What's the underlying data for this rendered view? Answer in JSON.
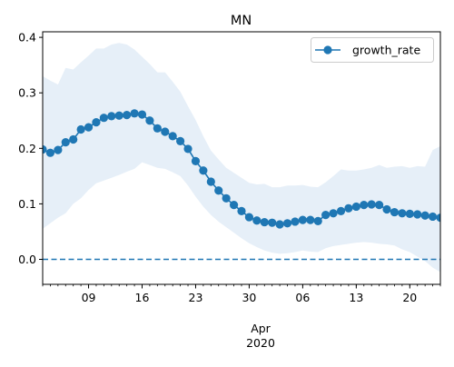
{
  "chart_data": {
    "type": "line",
    "title": "MN",
    "x_axis": {
      "type": "date",
      "start": "2020-03-03",
      "end": "2020-04-24",
      "ticks": [
        {
          "date": "2020-03-09",
          "label": "09"
        },
        {
          "date": "2020-03-16",
          "label": "16"
        },
        {
          "date": "2020-03-23",
          "label": "23"
        },
        {
          "date": "2020-03-30",
          "label": "30"
        },
        {
          "date": "2020-04-06",
          "label": "06"
        },
        {
          "date": "2020-04-13",
          "label": "13"
        },
        {
          "date": "2020-04-20",
          "label": "20"
        }
      ],
      "month_label": "Apr",
      "year_label": "2020"
    },
    "y_axis": {
      "ylim": [
        -0.045,
        0.41
      ],
      "ticks": [
        0.0,
        0.1,
        0.2,
        0.3,
        0.4
      ],
      "tick_labels": [
        "0.0",
        "0.1",
        "0.2",
        "0.3",
        "0.4"
      ]
    },
    "reference_line": {
      "y": 0.0,
      "style": "dashed",
      "color": "#1f77b4"
    },
    "legend": {
      "position": "top-right",
      "entries": [
        "growth_rate"
      ]
    },
    "series": [
      {
        "name": "growth_rate",
        "color": "#1f77b4",
        "band_color": "#e6eff8",
        "x": [
          "2020-03-03",
          "2020-03-04",
          "2020-03-05",
          "2020-03-06",
          "2020-03-07",
          "2020-03-08",
          "2020-03-09",
          "2020-03-10",
          "2020-03-11",
          "2020-03-12",
          "2020-03-13",
          "2020-03-14",
          "2020-03-15",
          "2020-03-16",
          "2020-03-17",
          "2020-03-18",
          "2020-03-19",
          "2020-03-20",
          "2020-03-21",
          "2020-03-22",
          "2020-03-23",
          "2020-03-24",
          "2020-03-25",
          "2020-03-26",
          "2020-03-27",
          "2020-03-28",
          "2020-03-29",
          "2020-03-30",
          "2020-03-31",
          "2020-04-01",
          "2020-04-02",
          "2020-04-03",
          "2020-04-04",
          "2020-04-05",
          "2020-04-06",
          "2020-04-07",
          "2020-04-08",
          "2020-04-09",
          "2020-04-10",
          "2020-04-11",
          "2020-04-12",
          "2020-04-13",
          "2020-04-14",
          "2020-04-15",
          "2020-04-16",
          "2020-04-17",
          "2020-04-18",
          "2020-04-19",
          "2020-04-20",
          "2020-04-21",
          "2020-04-22",
          "2020-04-23",
          "2020-04-24"
        ],
        "values": [
          0.198,
          0.192,
          0.197,
          0.211,
          0.216,
          0.234,
          0.238,
          0.247,
          0.255,
          0.258,
          0.259,
          0.26,
          0.263,
          0.261,
          0.25,
          0.236,
          0.23,
          0.222,
          0.213,
          0.199,
          0.177,
          0.16,
          0.14,
          0.124,
          0.11,
          0.098,
          0.087,
          0.076,
          0.07,
          0.067,
          0.066,
          0.063,
          0.065,
          0.068,
          0.071,
          0.071,
          0.069,
          0.08,
          0.083,
          0.087,
          0.092,
          0.095,
          0.098,
          0.099,
          0.098,
          0.09,
          0.085,
          0.083,
          0.082,
          0.081,
          0.079,
          0.077,
          0.075
        ],
        "lower": [
          0.055,
          0.065,
          0.075,
          0.083,
          0.1,
          0.11,
          0.125,
          0.137,
          0.142,
          0.147,
          0.152,
          0.158,
          0.163,
          0.175,
          0.17,
          0.165,
          0.163,
          0.157,
          0.15,
          0.133,
          0.113,
          0.095,
          0.08,
          0.068,
          0.058,
          0.048,
          0.038,
          0.029,
          0.022,
          0.016,
          0.012,
          0.01,
          0.011,
          0.013,
          0.016,
          0.014,
          0.013,
          0.02,
          0.024,
          0.026,
          0.028,
          0.03,
          0.031,
          0.03,
          0.028,
          0.027,
          0.025,
          0.018,
          0.013,
          0.005,
          -0.003,
          -0.015,
          -0.023
        ],
        "upper": [
          0.33,
          0.322,
          0.315,
          0.345,
          0.342,
          0.355,
          0.367,
          0.38,
          0.38,
          0.387,
          0.39,
          0.387,
          0.378,
          0.365,
          0.352,
          0.337,
          0.337,
          0.32,
          0.302,
          0.276,
          0.251,
          0.222,
          0.196,
          0.18,
          0.165,
          0.156,
          0.147,
          0.138,
          0.135,
          0.136,
          0.13,
          0.13,
          0.133,
          0.133,
          0.134,
          0.131,
          0.13,
          0.139,
          0.15,
          0.162,
          0.16,
          0.16,
          0.162,
          0.165,
          0.17,
          0.165,
          0.167,
          0.168,
          0.165,
          0.168,
          0.167,
          0.197,
          0.204
        ]
      }
    ]
  }
}
